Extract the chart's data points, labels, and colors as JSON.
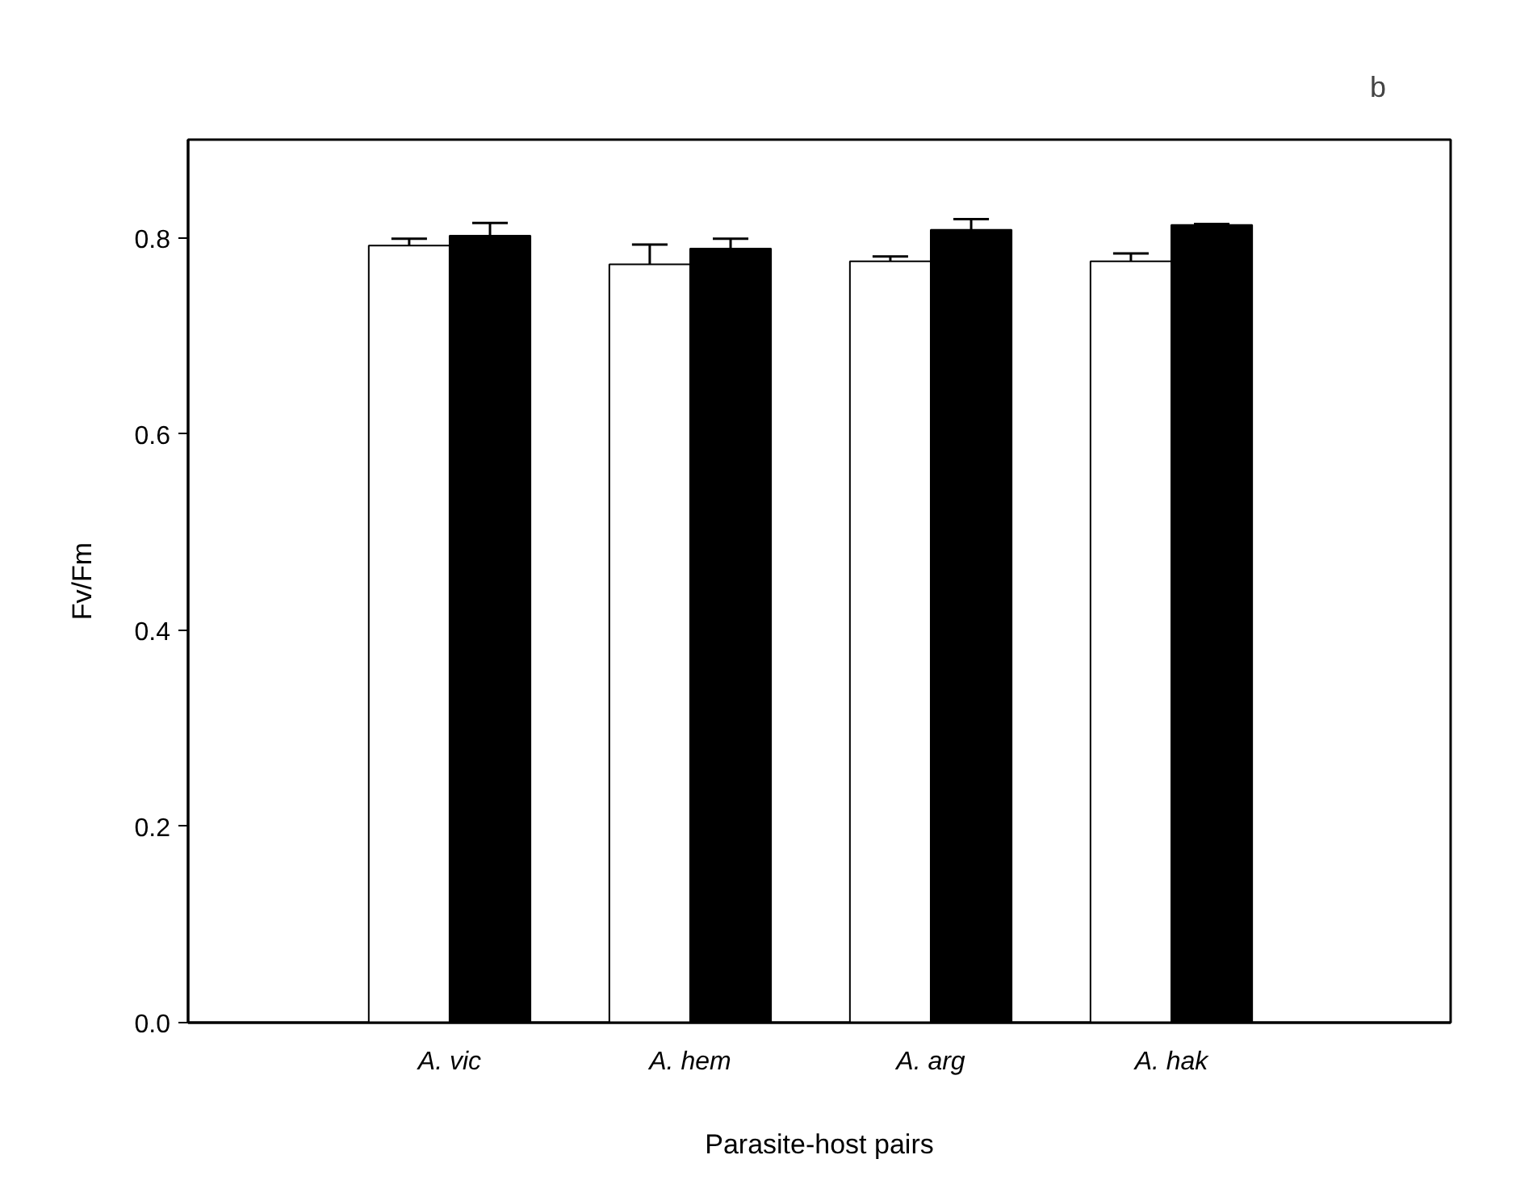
{
  "chart_data": {
    "type": "bar",
    "xlabel": "Parasite-host pairs",
    "ylabel": "Fv/Fm",
    "categories": [
      "A. vic",
      "A. hem",
      "A. arg",
      "A. hak"
    ],
    "series": [
      {
        "color": "#ffffff",
        "values": [
          0.792,
          0.773,
          0.776,
          0.776
        ],
        "errors": [
          0.007,
          0.02,
          0.005,
          0.008
        ]
      },
      {
        "color": "#000000",
        "values": [
          0.802,
          0.789,
          0.808,
          0.813
        ],
        "errors": [
          0.013,
          0.01,
          0.011,
          0.001
        ]
      }
    ],
    "ylim": [
      0,
      0.9
    ],
    "yticks": [
      {
        "value": 0,
        "label": "0.0"
      },
      {
        "value": 0.2,
        "label": "0.2"
      },
      {
        "value": 0.4,
        "label": "0.4"
      },
      {
        "value": 0.6,
        "label": "0.6"
      },
      {
        "value": 0.8,
        "label": "0.8"
      }
    ],
    "grid": false,
    "annotations": [
      "b"
    ]
  }
}
